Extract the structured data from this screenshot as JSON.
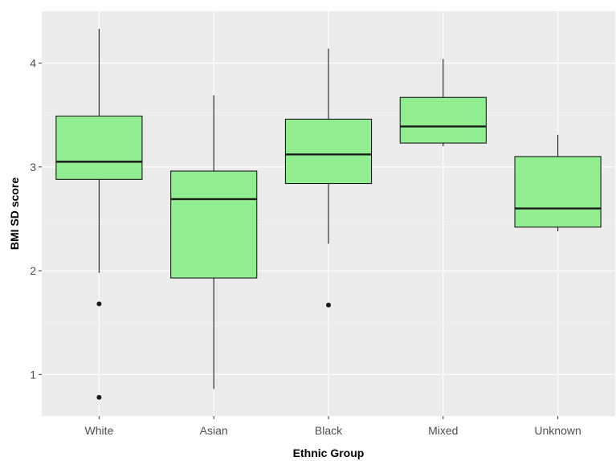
{
  "chart_data": {
    "type": "box",
    "title": "",
    "xlabel": "Ethnic Group",
    "ylabel": "BMI SD score",
    "categories": [
      "White",
      "Asian",
      "Black",
      "Mixed",
      "Unknown"
    ],
    "boxes": [
      {
        "category": "White",
        "whisker_low": 1.98,
        "q1": 2.88,
        "median": 3.05,
        "q3": 3.49,
        "whisker_high": 4.33,
        "outliers": [
          1.68,
          0.78
        ]
      },
      {
        "category": "Asian",
        "whisker_low": 0.86,
        "q1": 1.93,
        "median": 2.69,
        "q3": 2.96,
        "whisker_high": 3.69,
        "outliers": []
      },
      {
        "category": "Black",
        "whisker_low": 2.26,
        "q1": 2.84,
        "median": 3.12,
        "q3": 3.46,
        "whisker_high": 4.14,
        "outliers": [
          1.67
        ]
      },
      {
        "category": "Mixed",
        "whisker_low": 3.2,
        "q1": 3.23,
        "median": 3.39,
        "q3": 3.67,
        "whisker_high": 4.04,
        "outliers": []
      },
      {
        "category": "Unknown",
        "whisker_low": 2.38,
        "q1": 2.42,
        "median": 2.6,
        "q3": 3.1,
        "whisker_high": 3.31,
        "outliers": []
      }
    ],
    "y_ticks": [
      1,
      2,
      3,
      4
    ],
    "y_tick_labels": [
      "1",
      "2",
      "3",
      "4"
    ],
    "ylim": [
      0.6,
      4.5
    ],
    "grid": true,
    "legend": "none",
    "colors": {
      "box_fill": "#90ee90",
      "box_stroke": "#1a1a1a",
      "panel_background": "#ebebeb",
      "grid_major": "#ffffff",
      "grid_minor": "#f4f4f4",
      "tick_label": "#4d4d4d",
      "axis_title": "#000000"
    }
  }
}
